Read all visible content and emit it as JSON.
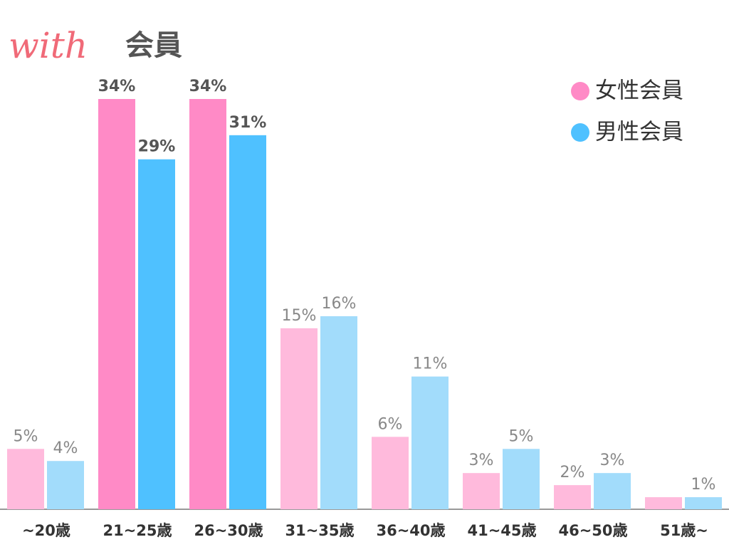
{
  "chart_data": {
    "type": "bar",
    "title_brand": "with",
    "title": "会員",
    "categories": [
      "~20歳",
      "21~25歳",
      "26~30歳",
      "31~35歳",
      "36~40歳",
      "41~45歳",
      "46~50歳",
      "51歳~"
    ],
    "series": [
      {
        "name": "女性会員",
        "color": "#ff8ac6",
        "colors": [
          "#ffbadc",
          "#ff8ac6",
          "#ff8ac6",
          "#ffbadc",
          "#ffbadc",
          "#ffbadc",
          "#ffbadc",
          "#ffbadc"
        ],
        "values": [
          5,
          34,
          34,
          15,
          6,
          3,
          2,
          1
        ],
        "value_labels": [
          "5%",
          "34%",
          "34%",
          "15%",
          "6%",
          "3%",
          "2%",
          null
        ]
      },
      {
        "name": "男性会員",
        "color": "#4fc1ff",
        "colors": [
          "#a2dcfb",
          "#4fc1ff",
          "#4fc1ff",
          "#a2dcfb",
          "#a2dcfb",
          "#a2dcfb",
          "#a2dcfb",
          "#a2dcfb"
        ],
        "values": [
          4,
          29,
          31,
          16,
          11,
          5,
          3,
          1
        ],
        "value_labels": [
          "4%",
          "29%",
          "31%",
          "16%",
          "11%",
          "5%",
          "3%",
          "1%"
        ]
      }
    ],
    "legend": "upper-right"
  }
}
